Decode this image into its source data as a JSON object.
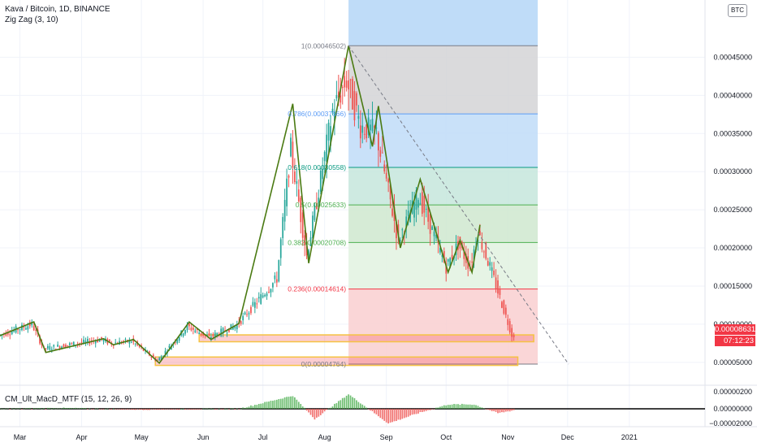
{
  "header": {
    "title": "Kava / Bitcoin, 1D, BINANCE",
    "indicator": "Zig Zag (3, 10)",
    "currency_badge": "BTC"
  },
  "macd_panel": {
    "title": "CM_Ult_MacD_MTF (15, 12, 26, 9)",
    "ticks": [
      "0.00000200",
      "0.00000000",
      "−0.00002000"
    ]
  },
  "price_readout": {
    "last_price": "0.00008631",
    "countdown": "07:12:23",
    "last_color": "#f23645"
  },
  "chart_data": {
    "type": "candlestick",
    "y_ticks": [
      "0.00045000",
      "0.00040000",
      "0.00035000",
      "0.00030000",
      "0.00025000",
      "0.00020000",
      "0.00015000",
      "0.00010000",
      "0.00005000"
    ],
    "y_tick_values": [
      0.00045,
      0.0004,
      0.00035,
      0.0003,
      0.00025,
      0.0002,
      0.00015,
      0.0001,
      5e-05
    ],
    "ylim": [
      2e-05,
      0.000525
    ],
    "x_ticks": [
      "Mar",
      "Apr",
      "May",
      "Jun",
      "Jul",
      "Aug",
      "Sep",
      "Oct",
      "Nov",
      "Dec",
      "2021"
    ],
    "x_tick_days": [
      0,
      31,
      61,
      92,
      122,
      153,
      184,
      214,
      245,
      275,
      306
    ],
    "date_range_days": [
      -10,
      344
    ],
    "last_day": 248,
    "fib_levels": [
      {
        "label": "1(0.00046502)",
        "value": 0.00046502,
        "fill": "#d3d4d6",
        "line": "#787b86"
      },
      {
        "label": "0.786(0.00037566)",
        "value": 0.00037566,
        "fill": "#bfdcf8",
        "line": "#5b9cf6"
      },
      {
        "label": "0.618(0.00030558)",
        "value": 0.00030558,
        "fill": "#c6e6dc",
        "line": "#089981"
      },
      {
        "label": "0.5(0.00025633)",
        "value": 0.00025633,
        "fill": "#cfe7cf",
        "line": "#4caf50"
      },
      {
        "label": "0.382(0.00020708)",
        "value": 0.00020708,
        "fill": "#e2f2e0",
        "line": "#4caf50"
      },
      {
        "label": "0.236(0.00014614)",
        "value": 0.00014614,
        "fill": "#f9cfd0",
        "line": "#f23645"
      },
      {
        "label": "0(0.00004764)",
        "value": 4.764e-05,
        "fill": "#ffffff",
        "line": "#787b86"
      }
    ],
    "fib_day_range": [
      165,
      260
    ],
    "zigzag": [
      {
        "d": -10,
        "v": 8.5e-05
      },
      {
        "d": 7,
        "v": 0.000103
      },
      {
        "d": 13,
        "v": 6.3e-05
      },
      {
        "d": 42,
        "v": 8.1e-05
      },
      {
        "d": 47,
        "v": 7.3e-05
      },
      {
        "d": 57,
        "v": 8e-05
      },
      {
        "d": 70,
        "v": 4.9e-05
      },
      {
        "d": 85,
        "v": 0.000103
      },
      {
        "d": 96,
        "v": 8e-05
      },
      {
        "d": 110,
        "v": 0.000101
      },
      {
        "d": 137,
        "v": 0.000389
      },
      {
        "d": 145,
        "v": 0.00018
      },
      {
        "d": 165,
        "v": 0.000465
      },
      {
        "d": 177,
        "v": 0.000333
      },
      {
        "d": 180,
        "v": 0.000386
      },
      {
        "d": 191,
        "v": 0.0002
      },
      {
        "d": 201,
        "v": 0.00029
      },
      {
        "d": 215,
        "v": 0.000168
      },
      {
        "d": 221,
        "v": 0.00021
      },
      {
        "d": 227,
        "v": 0.000168
      },
      {
        "d": 231,
        "v": 0.00023
      }
    ],
    "candle_path": [
      {
        "d": -10,
        "v": 8.5e-05
      },
      {
        "d": 7,
        "v": 0.0001
      },
      {
        "d": 13,
        "v": 6.8e-05
      },
      {
        "d": 42,
        "v": 8e-05
      },
      {
        "d": 47,
        "v": 7.5e-05
      },
      {
        "d": 57,
        "v": 7.8e-05
      },
      {
        "d": 70,
        "v": 5.2e-05
      },
      {
        "d": 85,
        "v": 9.7e-05
      },
      {
        "d": 96,
        "v": 8.3e-05
      },
      {
        "d": 110,
        "v": 9.9e-05
      },
      {
        "d": 130,
        "v": 0.00016
      },
      {
        "d": 137,
        "v": 0.00033
      },
      {
        "d": 145,
        "v": 0.00019
      },
      {
        "d": 152,
        "v": 0.00029
      },
      {
        "d": 158,
        "v": 0.00038
      },
      {
        "d": 165,
        "v": 0.00042
      },
      {
        "d": 172,
        "v": 0.00036
      },
      {
        "d": 180,
        "v": 0.00035
      },
      {
        "d": 191,
        "v": 0.00021
      },
      {
        "d": 201,
        "v": 0.00027
      },
      {
        "d": 215,
        "v": 0.000175
      },
      {
        "d": 221,
        "v": 0.000205
      },
      {
        "d": 227,
        "v": 0.000175
      },
      {
        "d": 231,
        "v": 0.00022
      },
      {
        "d": 237,
        "v": 0.000175
      },
      {
        "d": 248,
        "v": 8.63e-05
      }
    ],
    "support_zones": [
      {
        "d0": 90,
        "d1": 258,
        "v0": 7.7e-05,
        "v1": 8.6e-05
      },
      {
        "d0": 68,
        "d1": 250,
        "v0": 4.6e-05,
        "v1": 5.7e-05
      }
    ],
    "macd_histogram_peaks": [
      {
        "d": -10,
        "v": 0.0
      },
      {
        "d": 20,
        "v": 0.05
      },
      {
        "d": 60,
        "v": -0.05
      },
      {
        "d": 110,
        "v": 0.0
      },
      {
        "d": 137,
        "v": 0.9
      },
      {
        "d": 148,
        "v": -0.7
      },
      {
        "d": 165,
        "v": 1.0
      },
      {
        "d": 185,
        "v": -1.0
      },
      {
        "d": 200,
        "v": -0.3
      },
      {
        "d": 215,
        "v": 0.3
      },
      {
        "d": 228,
        "v": 0.3
      },
      {
        "d": 240,
        "v": -0.3
      },
      {
        "d": 248,
        "v": -0.1
      }
    ],
    "x_ticks_extra": [
      "Mar",
      "Apr",
      "May",
      "Jun",
      "Jul",
      "Aug",
      "Sep",
      "Oct",
      "Nov",
      "Dec",
      "2021"
    ]
  }
}
